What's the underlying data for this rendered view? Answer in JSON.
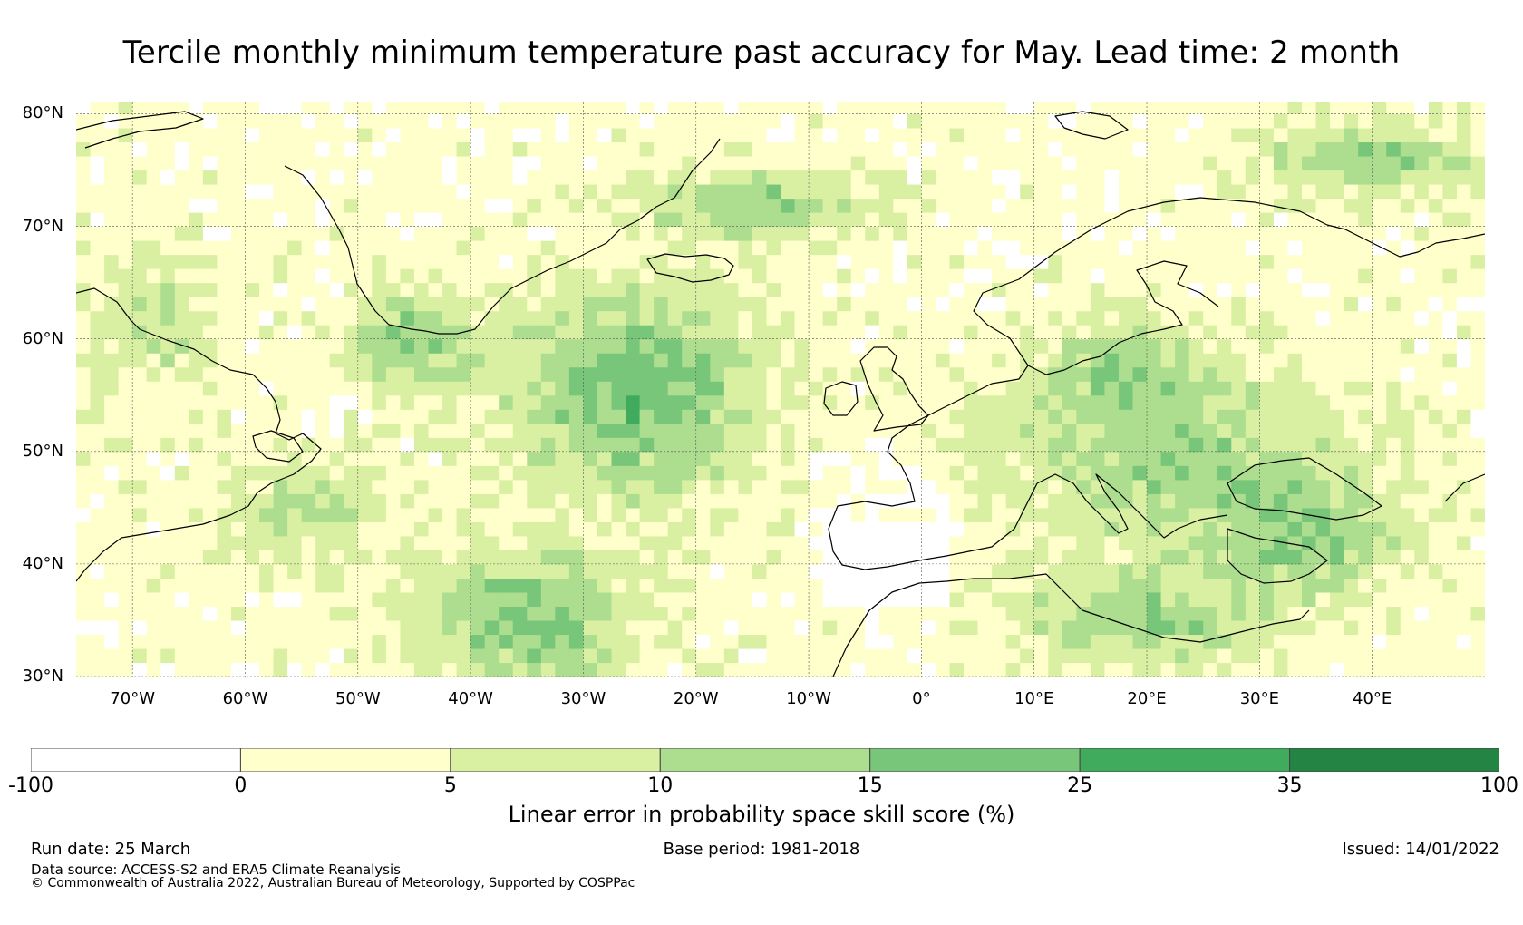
{
  "title": "Tercile monthly minimum temperature past accuracy for May. Lead time: 2 month",
  "map": {
    "lat_labels": [
      "80°N",
      "70°N",
      "60°N",
      "50°N",
      "40°N",
      "30°N"
    ],
    "lat_values": [
      80,
      70,
      60,
      50,
      40,
      30
    ],
    "lon_labels": [
      "70°W",
      "60°W",
      "50°W",
      "40°W",
      "30°W",
      "20°W",
      "10°W",
      "0°",
      "10°E",
      "20°E",
      "30°E",
      "40°E"
    ],
    "lon_values": [
      -70,
      -60,
      -50,
      -40,
      -30,
      -20,
      -10,
      0,
      10,
      20,
      30,
      40
    ],
    "extent": {
      "lon": [
        -75,
        50
      ],
      "lat": [
        30,
        81
      ]
    },
    "coastline_color": "#000000",
    "grid_color": "#555555"
  },
  "colorbar": {
    "ticks": [
      "-100",
      "0",
      "5",
      "10",
      "15",
      "25",
      "35",
      "100"
    ],
    "colors": [
      "#ffffff",
      "#ffffcc",
      "#d9f0a3",
      "#addd8e",
      "#78c679",
      "#41ab5d",
      "#238443"
    ],
    "label": "Linear error in probability space skill score (%)"
  },
  "footer": {
    "run_date": "Run date: 25 March",
    "base_period": "Base period: 1981-2018",
    "issued": "Issued: 14/01/2022",
    "source": "Data source: ACCESS-S2 and ERA5 Climate Reanalysis",
    "copyright": "© Commonwealth of Australia 2022, Australian Bureau of Meteorology, Supported by COSPPac"
  }
}
